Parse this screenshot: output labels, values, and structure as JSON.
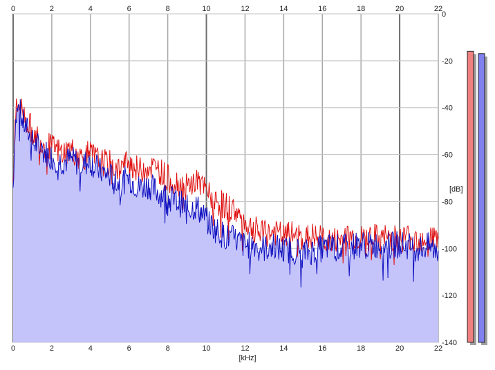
{
  "chart_data": {
    "type": "line",
    "title": "",
    "xlabel": "[kHz]",
    "ylabel": "[dB]",
    "xlim": [
      0,
      22
    ],
    "ylim": [
      -140,
      0
    ],
    "x_ticks": [
      "0",
      "2",
      "4",
      "6",
      "8",
      "10",
      "12",
      "14",
      "16",
      "18",
      "20",
      "22"
    ],
    "y_ticks": [
      "0",
      "-20",
      "-40",
      "-60",
      "-80",
      "-100",
      "-120",
      "-140"
    ],
    "grid": true,
    "fill_under": "blue",
    "x": [
      0,
      0.1,
      0.2,
      0.3,
      0.5,
      0.75,
      1,
      1.25,
      1.5,
      2,
      2.5,
      3,
      3.5,
      4,
      4.5,
      5,
      5.5,
      6,
      6.5,
      7,
      7.5,
      8,
      8.5,
      9,
      9.5,
      10,
      10.5,
      11,
      11.5,
      12,
      12.5,
      13,
      13.5,
      14,
      14.5,
      15,
      15.5,
      16,
      16.5,
      17,
      17.5,
      18,
      18.5,
      19,
      19.5,
      20,
      20.5,
      21,
      21.5,
      22
    ],
    "series": [
      {
        "color": "#e01010",
        "values": [
          -72,
          -44,
          -40,
          -38,
          -42,
          -46,
          -50,
          -52,
          -55,
          -57,
          -59,
          -58,
          -61,
          -60,
          -63,
          -64,
          -66,
          -63,
          -67,
          -65,
          -66,
          -70,
          -72,
          -74,
          -71,
          -76,
          -80,
          -82,
          -84,
          -89,
          -92,
          -94,
          -93,
          -95,
          -94,
          -96,
          -95,
          -96,
          -97,
          -96,
          -95,
          -96,
          -95,
          -96,
          -95,
          -96,
          -95,
          -96,
          -95,
          -96
        ]
      },
      {
        "color": "#1010c0",
        "values": [
          -74,
          -48,
          -42,
          -40,
          -46,
          -50,
          -55,
          -56,
          -58,
          -61,
          -63,
          -62,
          -64,
          -63,
          -67,
          -69,
          -72,
          -70,
          -74,
          -73,
          -76,
          -78,
          -80,
          -83,
          -82,
          -88,
          -92,
          -95,
          -96,
          -99,
          -98,
          -100,
          -99,
          -101,
          -100,
          -102,
          -101,
          -100,
          -99,
          -100,
          -99,
          -98,
          -99,
          -98,
          -99,
          -98,
          -99,
          -100,
          -99,
          -101
        ]
      }
    ],
    "level_meters": [
      {
        "color": "#f08080",
        "value_db": -16
      },
      {
        "color": "#8080f0",
        "value_db": -17
      }
    ]
  }
}
